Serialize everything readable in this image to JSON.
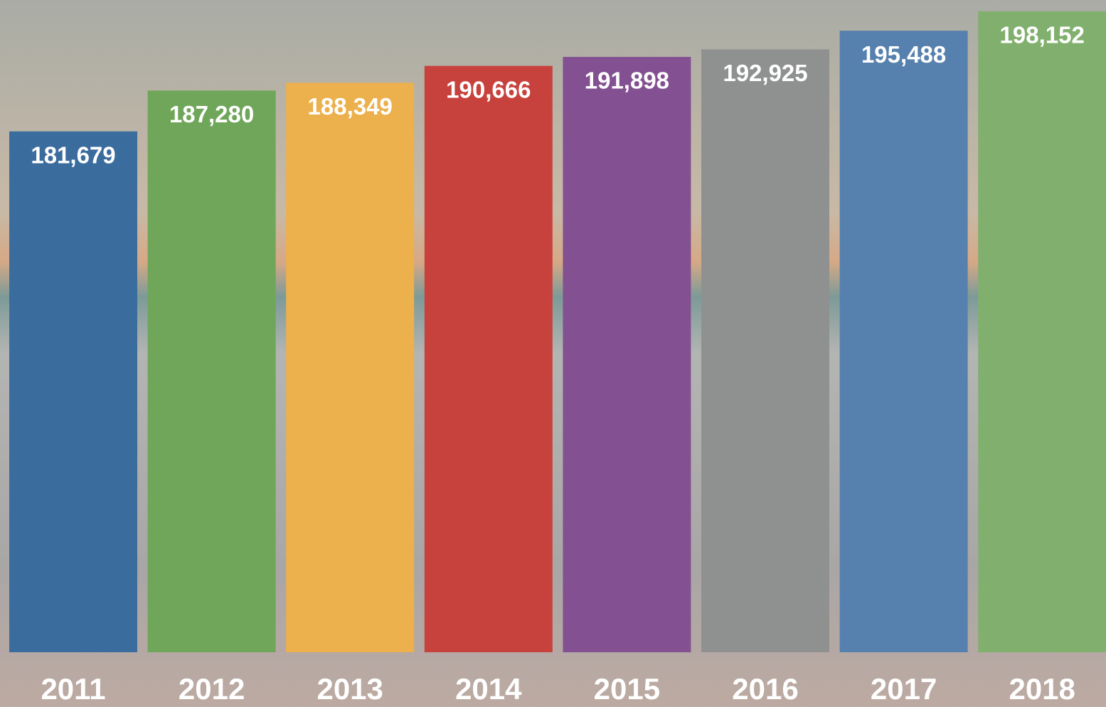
{
  "chart_data": {
    "type": "bar",
    "categories": [
      "2011",
      "2012",
      "2013",
      "2014",
      "2015",
      "2016",
      "2017",
      "2018"
    ],
    "values": [
      181679,
      187280,
      188349,
      190666,
      191898,
      192925,
      195488,
      198152
    ],
    "value_labels": [
      "181,679",
      "187,280",
      "188,349",
      "190,666",
      "191,898",
      "192,925",
      "195,488",
      "198,152"
    ],
    "colors": [
      "#3b6c9e",
      "#6fa659",
      "#ecb04c",
      "#c8423d",
      "#835191",
      "#8f9190",
      "#5680ad",
      "#81b06e"
    ],
    "ylim": [
      110250,
      199700
    ]
  }
}
